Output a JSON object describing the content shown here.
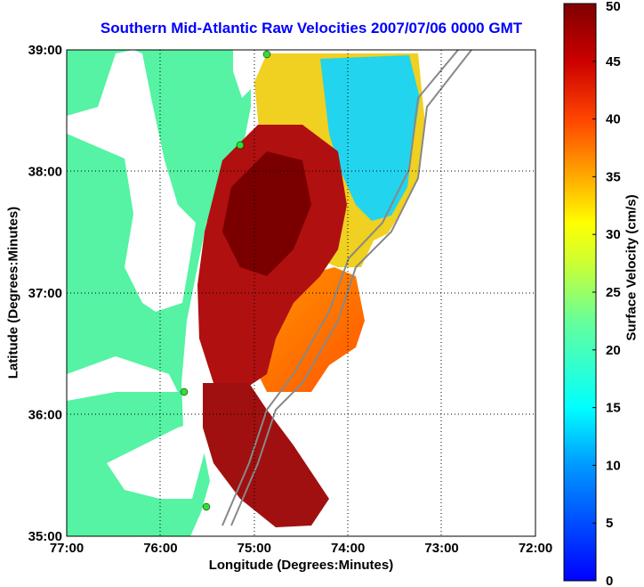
{
  "chart_data": {
    "type": "heatmap",
    "title": "Southern Mid-Atlantic Raw Velocities 2007/07/06 0000 GMT",
    "xlabel": "Longitude (Degrees:Minutes)",
    "ylabel": "Latitude (Degrees:Minutes)",
    "colorbar_label": "Surface Velocity (cm/s)",
    "x_ticks": [
      "77:00",
      "76:00",
      "75:00",
      "74:00",
      "73:00",
      "72:00"
    ],
    "y_ticks": [
      "39:00",
      "38:00",
      "37:00",
      "36:00",
      "35:00"
    ],
    "colorbar_ticks": [
      "0",
      "5",
      "10",
      "15",
      "20",
      "25",
      "30",
      "35",
      "40",
      "45",
      "50"
    ],
    "xlim": [
      -77,
      -72
    ],
    "ylim": [
      35,
      39
    ],
    "clim": [
      0,
      50
    ],
    "grid": true,
    "colors": {
      "land": "#55f3a3",
      "title": "#0000ff",
      "grid": "#000000",
      "bathymetry": "#888888"
    }
  }
}
